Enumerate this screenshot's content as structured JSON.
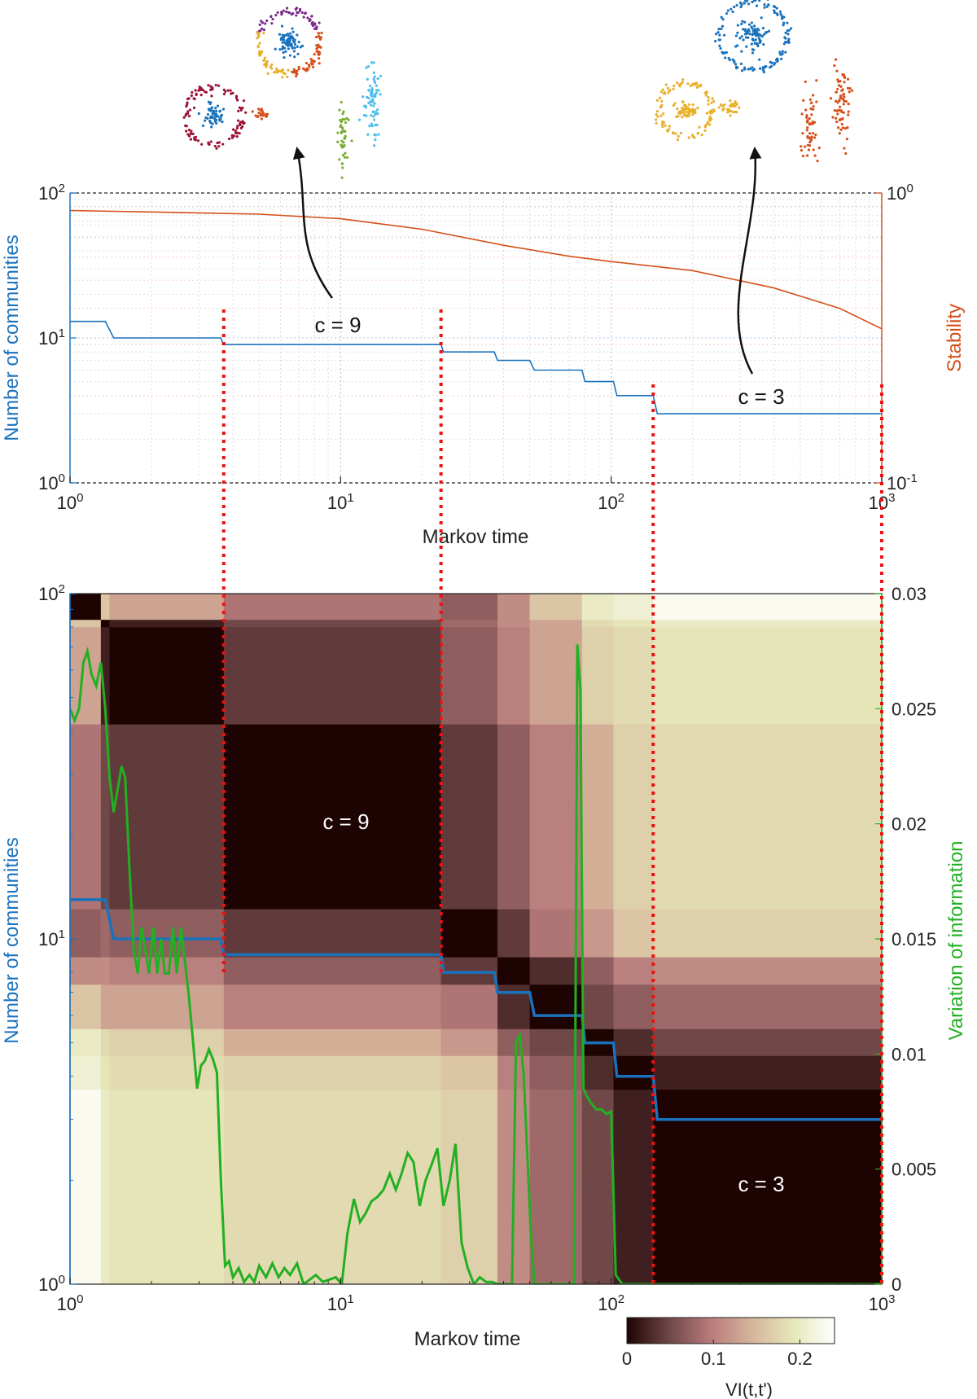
{
  "colors": {
    "communities": "#1a72bd",
    "stability": "#d5501b",
    "vi": "#22b022",
    "guide": "#ee1111",
    "axis": "#222222",
    "cmap": [
      "#1e0303",
      "#6e4646",
      "#b87b7b",
      "#d5b49a",
      "#e6e7b9",
      "#ffffff"
    ]
  },
  "top_panel": {
    "xlabel": "Markov time",
    "ylabel_left": "Number of communities",
    "ylabel_right": "Stability",
    "x_ticks": [
      {
        "base": "10",
        "exp": "0"
      },
      {
        "base": "10",
        "exp": "1"
      },
      {
        "base": "10",
        "exp": "2"
      },
      {
        "base": "10",
        "exp": "3"
      }
    ],
    "y_ticks_left": [
      {
        "base": "10",
        "exp": "0"
      },
      {
        "base": "10",
        "exp": "1"
      },
      {
        "base": "10",
        "exp": "2"
      }
    ],
    "y_ticks_right": [
      {
        "base": "10",
        "exp": "-1"
      },
      {
        "base": "10",
        "exp": "0"
      }
    ],
    "annotations": {
      "c9": "c = 9",
      "c3": "c = 3"
    }
  },
  "bottom_panel": {
    "xlabel": "Markov time",
    "ylabel_left": "Number of communities",
    "ylabel_right": "Variation of information",
    "x_ticks": [
      {
        "base": "10",
        "exp": "0"
      },
      {
        "base": "10",
        "exp": "1"
      },
      {
        "base": "10",
        "exp": "2"
      },
      {
        "base": "10",
        "exp": "3"
      }
    ],
    "y_ticks_left": [
      {
        "base": "10",
        "exp": "0"
      },
      {
        "base": "10",
        "exp": "1"
      },
      {
        "base": "10",
        "exp": "2"
      }
    ],
    "y_ticks_right": [
      "0",
      "0.005",
      "0.01",
      "0.015",
      "0.02",
      "0.025",
      "0.03"
    ],
    "annotations": {
      "c9": "c = 9",
      "c3": "c = 3"
    },
    "colorbar": {
      "label": "VI(t,t')",
      "ticks": [
        "0",
        "0.1",
        "0.2"
      ],
      "range": [
        0,
        0.24
      ]
    }
  },
  "chart_data": [
    {
      "type": "line",
      "xlabel": "Markov time",
      "ylabel": "Number of communities",
      "ylabel_right": "Stability",
      "xscale": "log",
      "xlim": [
        1,
        1000
      ],
      "ylim": [
        1,
        100
      ],
      "ylim_right": [
        0.1,
        1
      ],
      "grid": true,
      "series": [
        {
          "name": "Number of communities",
          "axis": "left",
          "x": [
            1,
            1.35,
            1.45,
            3.6,
            3.7,
            23.5,
            24,
            37,
            38,
            50,
            52,
            78,
            80,
            102,
            105,
            143,
            148,
            1000
          ],
          "y": [
            13,
            13,
            10,
            10,
            9,
            9,
            8,
            8,
            7,
            7,
            6,
            6,
            5,
            5,
            4,
            4,
            3,
            3
          ]
        },
        {
          "name": "Stability",
          "axis": "right",
          "x": [
            1,
            2,
            5,
            10,
            20,
            40,
            70,
            100,
            200,
            400,
            700,
            1000
          ],
          "y": [
            0.87,
            0.86,
            0.845,
            0.815,
            0.75,
            0.66,
            0.605,
            0.58,
            0.54,
            0.47,
            0.4,
            0.34
          ]
        }
      ],
      "annotations": [
        "c = 9",
        "c = 3"
      ]
    },
    {
      "type": "heatmap",
      "xlabel": "Markov time",
      "ylabel": "Number of communities",
      "ylabel_right": "Variation of information",
      "xscale": "log",
      "xlim": [
        1,
        1000
      ],
      "ylim": [
        1,
        100
      ],
      "ylim_right": [
        0,
        0.03
      ],
      "colorbar_label": "VI(t,t')",
      "colorbar_range": [
        0,
        0.24
      ],
      "boundaries": [
        1,
        1.3,
        1.4,
        3.7,
        23.5,
        38,
        50,
        78,
        102,
        143,
        1000
      ],
      "blocks": [
        [
          0.0,
          0.16,
          0.13,
          0.09,
          0.07,
          0.11,
          0.16,
          0.2,
          0.21,
          0.23
        ],
        [
          0.16,
          0.0,
          0.02,
          0.05,
          0.08,
          0.11,
          0.13,
          0.18,
          0.19,
          0.2
        ],
        [
          0.13,
          0.02,
          0.0,
          0.04,
          0.07,
          0.1,
          0.13,
          0.17,
          0.18,
          0.19
        ],
        [
          0.09,
          0.05,
          0.04,
          0.0,
          0.04,
          0.07,
          0.1,
          0.14,
          0.17,
          0.18
        ],
        [
          0.07,
          0.08,
          0.07,
          0.04,
          0.0,
          0.04,
          0.09,
          0.12,
          0.16,
          0.17
        ],
        [
          0.11,
          0.11,
          0.1,
          0.07,
          0.04,
          0.0,
          0.03,
          0.07,
          0.1,
          0.11
        ],
        [
          0.16,
          0.13,
          0.13,
          0.1,
          0.09,
          0.03,
          0.0,
          0.05,
          0.07,
          0.08
        ],
        [
          0.2,
          0.18,
          0.17,
          0.14,
          0.12,
          0.07,
          0.05,
          0.0,
          0.03,
          0.05
        ],
        [
          0.21,
          0.19,
          0.18,
          0.17,
          0.16,
          0.1,
          0.07,
          0.03,
          0.0,
          0.02
        ],
        [
          0.23,
          0.2,
          0.19,
          0.18,
          0.17,
          0.11,
          0.08,
          0.05,
          0.02,
          0.0
        ]
      ],
      "series": [
        {
          "name": "Number of communities",
          "axis": "left",
          "x": [
            1,
            1.35,
            1.45,
            3.6,
            3.7,
            23.5,
            24,
            37,
            38,
            50,
            52,
            78,
            80,
            102,
            105,
            143,
            148,
            1000
          ],
          "y": [
            13,
            13,
            10,
            10,
            9,
            9,
            8,
            8,
            7,
            7,
            6,
            6,
            5,
            5,
            4,
            4,
            3,
            3
          ]
        },
        {
          "name": "Variation of information",
          "axis": "right",
          "x": [
            1,
            1.04,
            1.08,
            1.12,
            1.16,
            1.2,
            1.25,
            1.3,
            1.35,
            1.4,
            1.45,
            1.5,
            1.55,
            1.6,
            1.66,
            1.72,
            1.78,
            1.84,
            1.9,
            1.96,
            2.03,
            2.1,
            2.17,
            2.24,
            2.32,
            2.4,
            2.48,
            2.57,
            2.66,
            2.75,
            2.85,
            2.95,
            3.05,
            3.15,
            3.26,
            3.37,
            3.49,
            3.61,
            3.74,
            3.87,
            4.0,
            4.2,
            4.4,
            4.6,
            4.8,
            5.0,
            5.3,
            5.6,
            5.9,
            6.2,
            6.5,
            6.9,
            7.3,
            7.7,
            8.1,
            8.6,
            9.1,
            9.6,
            10.1,
            10.6,
            11.2,
            11.8,
            12.4,
            13.0,
            13.7,
            14.4,
            15.2,
            16.0,
            16.8,
            17.7,
            18.6,
            19.6,
            20.6,
            21.7,
            22.8,
            24.0,
            25.3,
            26.6,
            28.0,
            29.5,
            31.1,
            32.7,
            34.5,
            36.3,
            38.2,
            40.0,
            41.5,
            43.0,
            44.5,
            46.0,
            47.5,
            49.0,
            50.5,
            52.0,
            55.0,
            58.0,
            62.0,
            66.0,
            70.0,
            73.0,
            75.0,
            77.0,
            79.0,
            81.0,
            84.0,
            88.0,
            92.0,
            96.0,
            100.0,
            104.0,
            110.0,
            120.0,
            140.0,
            200.0,
            400.0,
            700.0,
            1000.0
          ],
          "y": [
            0.025,
            0.0245,
            0.025,
            0.027,
            0.0275,
            0.0265,
            0.026,
            0.027,
            0.025,
            0.022,
            0.0205,
            0.0215,
            0.0225,
            0.022,
            0.018,
            0.0145,
            0.0135,
            0.0155,
            0.0145,
            0.0135,
            0.0155,
            0.0135,
            0.015,
            0.0135,
            0.0135,
            0.0155,
            0.0135,
            0.0155,
            0.014,
            0.0125,
            0.0105,
            0.0085,
            0.0095,
            0.0097,
            0.0102,
            0.0098,
            0.0092,
            0.0045,
            0.0008,
            0.001,
            0.0003,
            0.0007,
            0.0001,
            0.0004,
            0.0001,
            0.0008,
            0.0003,
            0.0009,
            0.0003,
            0.0007,
            0.0004,
            0.0009,
            0.0,
            0.0002,
            0.0004,
            0.0001,
            0.0002,
            0.0003,
            0.0,
            0.0022,
            0.0037,
            0.0027,
            0.0031,
            0.0036,
            0.0038,
            0.0041,
            0.0048,
            0.0041,
            0.0048,
            0.0057,
            0.0053,
            0.0034,
            0.0045,
            0.0052,
            0.0059,
            0.0034,
            0.0045,
            0.0061,
            0.0018,
            0.0007,
            0.0,
            0.0003,
            0.0001,
            0.0001,
            0.0,
            0.0,
            0.0,
            0.0,
            0.0105,
            0.0108,
            0.0091,
            0.0056,
            0.0021,
            0.0,
            0.0,
            0.0,
            0.0,
            0.0,
            0.0,
            0.0,
            0.0278,
            0.0258,
            0.0085,
            0.0082,
            0.0079,
            0.0076,
            0.0076,
            0.0074,
            0.0075,
            0.0004,
            0.0,
            0.0,
            0.0,
            0.0,
            0.0,
            0.0,
            0.0
          ]
        }
      ],
      "annotations": [
        "c = 9",
        "c = 3"
      ]
    }
  ]
}
